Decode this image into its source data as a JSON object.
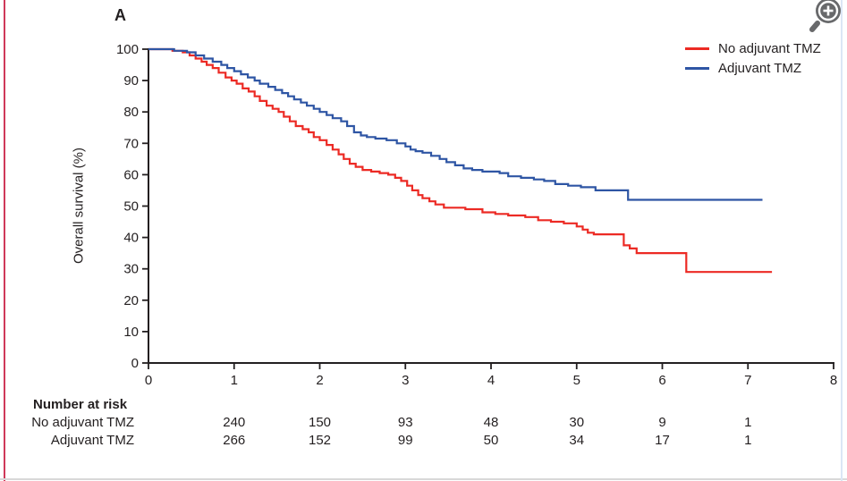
{
  "figure": {
    "panel_label": "A"
  },
  "controls": {
    "zoom_button_icon": "magnifier-plus"
  },
  "style": {
    "axis_color": "#231f20",
    "text_color": "#231f20",
    "accent_bar_color": "#cf3959",
    "bottom_border_color": "#d8d8d8",
    "right_border_color": "#dbe6f5",
    "icon_color": "#68696b",
    "icon_glyph_color": "#ffffff",
    "background": "#ffffff"
  },
  "chart_data": {
    "type": "line",
    "subtype": "kaplan-meier-step",
    "title": "",
    "xlabel": "",
    "ylabel": "Overall survival (%)",
    "xlim": [
      0,
      8
    ],
    "ylim": [
      0,
      100
    ],
    "x_ticks": [
      0,
      1,
      2,
      3,
      4,
      5,
      6,
      7,
      8
    ],
    "y_ticks": [
      0,
      10,
      20,
      30,
      40,
      50,
      60,
      70,
      80,
      90,
      100
    ],
    "grid": false,
    "legend_position": "top-right",
    "series": [
      {
        "name": "No adjuvant TMZ",
        "color": "#ec2a24",
        "end_time": 7.28,
        "steps": [
          [
            0,
            100
          ],
          [
            0.28,
            99.5
          ],
          [
            0.4,
            99
          ],
          [
            0.48,
            98
          ],
          [
            0.55,
            97
          ],
          [
            0.62,
            96
          ],
          [
            0.68,
            95
          ],
          [
            0.75,
            94
          ],
          [
            0.82,
            92.5
          ],
          [
            0.9,
            91
          ],
          [
            0.97,
            90
          ],
          [
            1.03,
            89
          ],
          [
            1.1,
            87.5
          ],
          [
            1.17,
            86.5
          ],
          [
            1.24,
            85
          ],
          [
            1.3,
            83.5
          ],
          [
            1.38,
            82
          ],
          [
            1.45,
            81
          ],
          [
            1.52,
            80
          ],
          [
            1.58,
            78.5
          ],
          [
            1.65,
            77
          ],
          [
            1.72,
            75.5
          ],
          [
            1.8,
            74.5
          ],
          [
            1.87,
            73.5
          ],
          [
            1.93,
            72
          ],
          [
            2.0,
            71
          ],
          [
            2.08,
            69.5
          ],
          [
            2.15,
            68
          ],
          [
            2.22,
            66.5
          ],
          [
            2.28,
            65
          ],
          [
            2.35,
            63.5
          ],
          [
            2.42,
            62.5
          ],
          [
            2.5,
            61.5
          ],
          [
            2.6,
            61
          ],
          [
            2.7,
            60.5
          ],
          [
            2.8,
            60
          ],
          [
            2.88,
            59
          ],
          [
            2.95,
            58
          ],
          [
            3.02,
            56.5
          ],
          [
            3.08,
            55
          ],
          [
            3.15,
            53.5
          ],
          [
            3.2,
            52.5
          ],
          [
            3.28,
            51.5
          ],
          [
            3.35,
            50.5
          ],
          [
            3.45,
            49.5
          ],
          [
            3.7,
            49
          ],
          [
            3.9,
            48
          ],
          [
            4.05,
            47.5
          ],
          [
            4.2,
            47
          ],
          [
            4.4,
            46.5
          ],
          [
            4.55,
            45.5
          ],
          [
            4.7,
            45
          ],
          [
            4.85,
            44.5
          ],
          [
            5.0,
            43.5
          ],
          [
            5.07,
            42.5
          ],
          [
            5.13,
            41.5
          ],
          [
            5.2,
            41
          ],
          [
            5.55,
            37.5
          ],
          [
            5.62,
            36.5
          ],
          [
            5.7,
            35
          ],
          [
            6.28,
            29
          ]
        ]
      },
      {
        "name": "Adjuvant TMZ",
        "color": "#2e55a4",
        "end_time": 7.17,
        "steps": [
          [
            0,
            100
          ],
          [
            0.3,
            99.5
          ],
          [
            0.45,
            99
          ],
          [
            0.55,
            98
          ],
          [
            0.65,
            97
          ],
          [
            0.75,
            96
          ],
          [
            0.85,
            95
          ],
          [
            0.92,
            94
          ],
          [
            1.0,
            93
          ],
          [
            1.08,
            92
          ],
          [
            1.16,
            91
          ],
          [
            1.24,
            90
          ],
          [
            1.3,
            89
          ],
          [
            1.4,
            88
          ],
          [
            1.48,
            87
          ],
          [
            1.56,
            86
          ],
          [
            1.63,
            85
          ],
          [
            1.7,
            84
          ],
          [
            1.78,
            83
          ],
          [
            1.85,
            82
          ],
          [
            1.93,
            81
          ],
          [
            2.0,
            80
          ],
          [
            2.08,
            79
          ],
          [
            2.15,
            78
          ],
          [
            2.25,
            77
          ],
          [
            2.32,
            75.5
          ],
          [
            2.4,
            73.5
          ],
          [
            2.48,
            72.5
          ],
          [
            2.55,
            72
          ],
          [
            2.65,
            71.5
          ],
          [
            2.78,
            71
          ],
          [
            2.9,
            70
          ],
          [
            3.0,
            69
          ],
          [
            3.06,
            68
          ],
          [
            3.12,
            67.5
          ],
          [
            3.2,
            67
          ],
          [
            3.3,
            66
          ],
          [
            3.4,
            65
          ],
          [
            3.48,
            64
          ],
          [
            3.58,
            63
          ],
          [
            3.68,
            62
          ],
          [
            3.78,
            61.5
          ],
          [
            3.9,
            61
          ],
          [
            4.1,
            60.5
          ],
          [
            4.2,
            59.5
          ],
          [
            4.35,
            59
          ],
          [
            4.5,
            58.5
          ],
          [
            4.62,
            58
          ],
          [
            4.75,
            57
          ],
          [
            4.9,
            56.5
          ],
          [
            5.05,
            56
          ],
          [
            5.22,
            55
          ],
          [
            5.6,
            52
          ]
        ]
      }
    ],
    "number_at_risk": {
      "header": "Number at risk",
      "times": [
        1,
        2,
        3,
        4,
        5,
        6,
        7
      ],
      "rows": [
        {
          "label": "No adjuvant TMZ",
          "counts": [
            240,
            150,
            93,
            48,
            30,
            9,
            1
          ]
        },
        {
          "label": "Adjuvant TMZ",
          "counts": [
            266,
            152,
            99,
            50,
            34,
            17,
            1
          ]
        }
      ]
    }
  }
}
